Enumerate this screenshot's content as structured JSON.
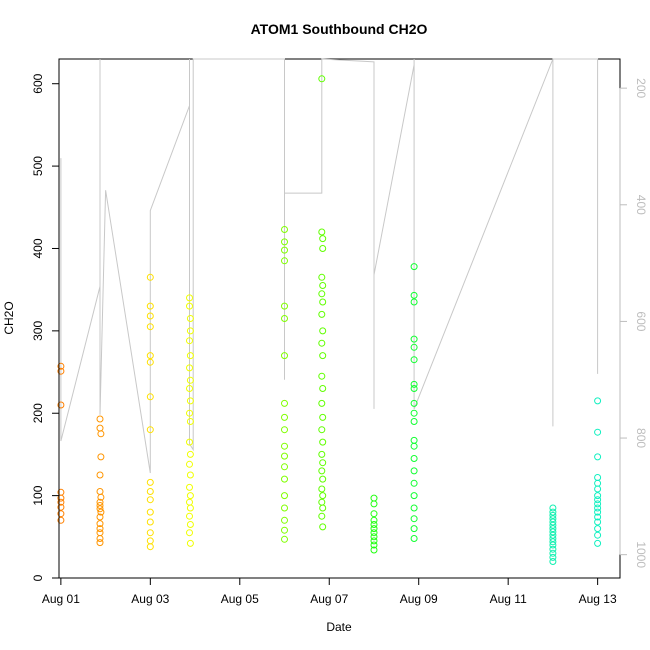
{
  "chart_data": {
    "type": "scatter",
    "title": "ATOM1 Southbound CH2O",
    "xlabel": "Date",
    "ylabel": "CH2O",
    "xlim": [
      "2016-07-31T23:00",
      "2016-08-13T12:00"
    ],
    "ylim": [
      0,
      630
    ],
    "x_ticks": [
      {
        "date": "2016-08-01",
        "label": "Aug 01"
      },
      {
        "date": "2016-08-03",
        "label": "Aug 03"
      },
      {
        "date": "2016-08-05",
        "label": "Aug 05"
      },
      {
        "date": "2016-08-07",
        "label": "Aug 07"
      },
      {
        "date": "2016-08-09",
        "label": "Aug 09"
      },
      {
        "date": "2016-08-11",
        "label": "Aug 11"
      },
      {
        "date": "2016-08-13",
        "label": "Aug 13"
      }
    ],
    "y_ticks": [
      0,
      100,
      200,
      300,
      400,
      500,
      600
    ],
    "secondary_axis": {
      "quantity": "pressure altitude profile (gray line), inverted",
      "range": [
        1040,
        150
      ],
      "ticks": [
        200,
        400,
        600,
        800,
        1000
      ],
      "color": "#bdbdbd"
    },
    "series": [
      {
        "color": "#ff8000",
        "x": [
          "2016-08-01T00:00",
          "2016-08-01T00:00",
          "2016-08-01T00:00",
          "2016-08-01T00:00",
          "2016-08-01T00:00",
          "2016-08-01T00:00",
          "2016-08-01T00:00",
          "2016-08-01T00:00",
          "2016-08-01T00:00"
        ],
        "y": [
          257,
          251,
          210,
          104,
          97,
          92,
          86,
          78,
          70
        ]
      },
      {
        "color": "#ff9500",
        "x": [
          "2016-08-01T21:00",
          "2016-08-01T21:00",
          "2016-08-01T21:30",
          "2016-08-01T21:30",
          "2016-08-01T21:00",
          "2016-08-01T21:00",
          "2016-08-01T21:30",
          "2016-08-01T21:00",
          "2016-08-01T21:00",
          "2016-08-01T21:00",
          "2016-08-01T21:30",
          "2016-08-01T21:00",
          "2016-08-01T21:00",
          "2016-08-01T21:00",
          "2016-08-01T21:00",
          "2016-08-01T21:00",
          "2016-08-01T21:00"
        ],
        "y": [
          193,
          182,
          175,
          147,
          125,
          105,
          98,
          92,
          88,
          84,
          80,
          74,
          66,
          60,
          55,
          48,
          43
        ]
      },
      {
        "color": "#ffe000",
        "x": [
          "2016-08-03T00:00",
          "2016-08-03T00:00",
          "2016-08-03T00:00",
          "2016-08-03T00:00",
          "2016-08-03T00:00",
          "2016-08-03T00:00",
          "2016-08-03T00:00",
          "2016-08-03T00:00",
          "2016-08-03T00:00",
          "2016-08-03T00:00",
          "2016-08-03T00:00",
          "2016-08-03T00:00",
          "2016-08-03T00:00",
          "2016-08-03T00:00",
          "2016-08-03T00:00",
          "2016-08-03T00:00"
        ],
        "y": [
          365,
          330,
          318,
          305,
          270,
          262,
          220,
          180,
          116,
          105,
          95,
          80,
          68,
          55,
          45,
          38
        ]
      },
      {
        "color": "#f0ff00",
        "x": [
          "2016-08-03T21:00",
          "2016-08-03T21:00",
          "2016-08-03T21:30",
          "2016-08-03T21:30",
          "2016-08-03T21:00",
          "2016-08-03T21:30",
          "2016-08-03T21:00",
          "2016-08-03T21:30",
          "2016-08-03T21:00",
          "2016-08-03T21:30",
          "2016-08-03T21:00",
          "2016-08-03T21:30",
          "2016-08-03T21:00",
          "2016-08-03T21:30",
          "2016-08-03T21:00",
          "2016-08-03T21:30",
          "2016-08-03T21:00",
          "2016-08-03T21:30",
          "2016-08-03T21:00",
          "2016-08-03T21:30",
          "2016-08-03T21:00",
          "2016-08-03T21:30",
          "2016-08-03T21:00",
          "2016-08-03T21:30"
        ],
        "y": [
          340,
          330,
          315,
          300,
          288,
          270,
          255,
          240,
          230,
          215,
          200,
          190,
          165,
          150,
          138,
          125,
          110,
          100,
          92,
          85,
          75,
          65,
          55,
          42
        ]
      },
      {
        "color": "#80ff00",
        "x": [
          "2016-08-06T00:00",
          "2016-08-06T00:00",
          "2016-08-06T00:00",
          "2016-08-06T00:00",
          "2016-08-06T00:00",
          "2016-08-06T00:00",
          "2016-08-06T00:00",
          "2016-08-06T00:00",
          "2016-08-06T00:00",
          "2016-08-06T00:00",
          "2016-08-06T00:00",
          "2016-08-06T00:00",
          "2016-08-06T00:00",
          "2016-08-06T00:00",
          "2016-08-06T00:00",
          "2016-08-06T00:00",
          "2016-08-06T00:00",
          "2016-08-06T00:00",
          "2016-08-06T00:00"
        ],
        "y": [
          423,
          408,
          398,
          385,
          330,
          315,
          270,
          212,
          195,
          180,
          160,
          148,
          135,
          120,
          100,
          85,
          70,
          58,
          47
        ]
      },
      {
        "color": "#60ff00",
        "x": [
          "2016-08-06T20:00",
          "2016-08-06T20:00",
          "2016-08-06T20:30",
          "2016-08-06T20:30",
          "2016-08-06T20:00",
          "2016-08-06T20:30",
          "2016-08-06T20:00",
          "2016-08-06T20:30",
          "2016-08-06T20:00",
          "2016-08-06T20:30",
          "2016-08-06T20:00",
          "2016-08-06T20:30",
          "2016-08-06T20:00",
          "2016-08-06T20:30",
          "2016-08-06T20:00",
          "2016-08-06T20:30",
          "2016-08-06T20:00",
          "2016-08-06T20:30",
          "2016-08-06T20:00",
          "2016-08-06T20:30",
          "2016-08-06T20:00",
          "2016-08-06T20:30",
          "2016-08-06T20:00",
          "2016-08-06T20:30",
          "2016-08-06T20:00",
          "2016-08-06T20:30",
          "2016-08-06T20:00",
          "2016-08-06T20:30"
        ],
        "y": [
          606,
          420,
          412,
          400,
          365,
          355,
          345,
          335,
          320,
          300,
          285,
          270,
          245,
          230,
          212,
          195,
          180,
          165,
          150,
          140,
          130,
          120,
          108,
          100,
          92,
          85,
          75,
          62
        ]
      },
      {
        "color": "#20ff10",
        "x": [
          "2016-08-08T00:00",
          "2016-08-08T00:00",
          "2016-08-08T00:00",
          "2016-08-08T00:00",
          "2016-08-08T00:00",
          "2016-08-08T00:00",
          "2016-08-08T00:00",
          "2016-08-08T00:00",
          "2016-08-08T00:00",
          "2016-08-08T00:00",
          "2016-08-08T00:00"
        ],
        "y": [
          97,
          90,
          78,
          70,
          65,
          60,
          55,
          50,
          45,
          40,
          34
        ]
      },
      {
        "color": "#10ff30",
        "x": [
          "2016-08-08T21:30",
          "2016-08-08T21:30",
          "2016-08-08T21:30",
          "2016-08-08T21:30",
          "2016-08-08T21:30",
          "2016-08-08T21:30",
          "2016-08-08T21:30",
          "2016-08-08T21:30",
          "2016-08-08T21:30",
          "2016-08-08T21:30",
          "2016-08-08T21:30",
          "2016-08-08T21:30",
          "2016-08-08T21:30",
          "2016-08-08T21:30",
          "2016-08-08T21:30",
          "2016-08-08T21:30",
          "2016-08-08T21:30",
          "2016-08-08T21:30",
          "2016-08-08T21:30",
          "2016-08-08T21:30",
          "2016-08-08T21:30"
        ],
        "y": [
          378,
          343,
          335,
          290,
          280,
          265,
          235,
          230,
          212,
          200,
          190,
          167,
          160,
          145,
          130,
          115,
          100,
          85,
          72,
          60,
          48
        ]
      },
      {
        "color": "#10f0b0",
        "x": [
          "2016-08-12T00:00",
          "2016-08-12T00:00",
          "2016-08-12T00:00",
          "2016-08-12T00:00",
          "2016-08-12T00:00",
          "2016-08-12T00:00",
          "2016-08-12T00:00",
          "2016-08-12T00:00",
          "2016-08-12T00:00",
          "2016-08-12T00:00",
          "2016-08-12T00:00",
          "2016-08-12T00:00",
          "2016-08-12T00:00",
          "2016-08-12T00:00",
          "2016-08-12T00:00",
          "2016-08-12T00:00"
        ],
        "y": [
          85,
          80,
          76,
          72,
          68,
          64,
          60,
          56,
          52,
          48,
          44,
          40,
          35,
          30,
          25,
          20
        ]
      },
      {
        "color": "#10f0c0",
        "x": [
          "2016-08-13T00:00",
          "2016-08-13T00:00",
          "2016-08-13T00:00",
          "2016-08-13T00:00",
          "2016-08-13T00:00",
          "2016-08-13T00:00",
          "2016-08-13T00:00",
          "2016-08-13T00:00",
          "2016-08-13T00:00",
          "2016-08-13T00:00",
          "2016-08-13T00:00",
          "2016-08-13T00:00",
          "2016-08-13T00:00",
          "2016-08-13T00:00",
          "2016-08-13T00:00",
          "2016-08-13T00:00"
        ],
        "y": [
          215,
          177,
          147,
          122,
          115,
          108,
          100,
          95,
          90,
          85,
          80,
          74,
          68,
          60,
          52,
          42
        ]
      }
    ],
    "profile_line": {
      "color": "#c8c8c8",
      "x": [
        "2016-08-01T00:00",
        "2016-08-01T00:00",
        "2016-08-01T00:00",
        "2016-08-01T21:00",
        "2016-08-01T21:00",
        "2016-08-01T21:00",
        "2016-08-02T00:00",
        "2016-08-03T00:00",
        "2016-08-03T00:00",
        "2016-08-03T00:00",
        "2016-08-03T21:00",
        "2016-08-03T21:00",
        "2016-08-03T21:00",
        "2016-08-03T21:00",
        "2016-08-03T23:00",
        "2016-08-03T23:00",
        "2016-08-06T00:00",
        "2016-08-06T00:00",
        "2016-08-06T00:00",
        "2016-08-06T00:00",
        "2016-08-06T00:00",
        "2016-08-06T20:00",
        "2016-08-06T20:00",
        "2016-08-06T20:00",
        "2016-08-06T20:00",
        "2016-08-08T00:00",
        "2016-08-08T00:00",
        "2016-08-08T00:00",
        "2016-08-08T00:00",
        "2016-08-08T21:30",
        "2016-08-08T21:30",
        "2016-08-08T21:30",
        "2016-08-08T21:30",
        "2016-08-12T00:00",
        "2016-08-12T00:00",
        "2016-08-12T00:00",
        "2016-08-12T00:00",
        "2016-08-13T00:00",
        "2016-08-13T00:00"
      ],
      "y": [
        595,
        320,
        805,
        540,
        150,
        760,
        375,
        860,
        810,
        410,
        230,
        150,
        780,
        810,
        820,
        150,
        150,
        700,
        420,
        150,
        380,
        380,
        150,
        160,
        150,
        155,
        750,
        520,
        520,
        160,
        150,
        700,
        750,
        150,
        730,
        780,
        150,
        150,
        690
      ]
    }
  }
}
